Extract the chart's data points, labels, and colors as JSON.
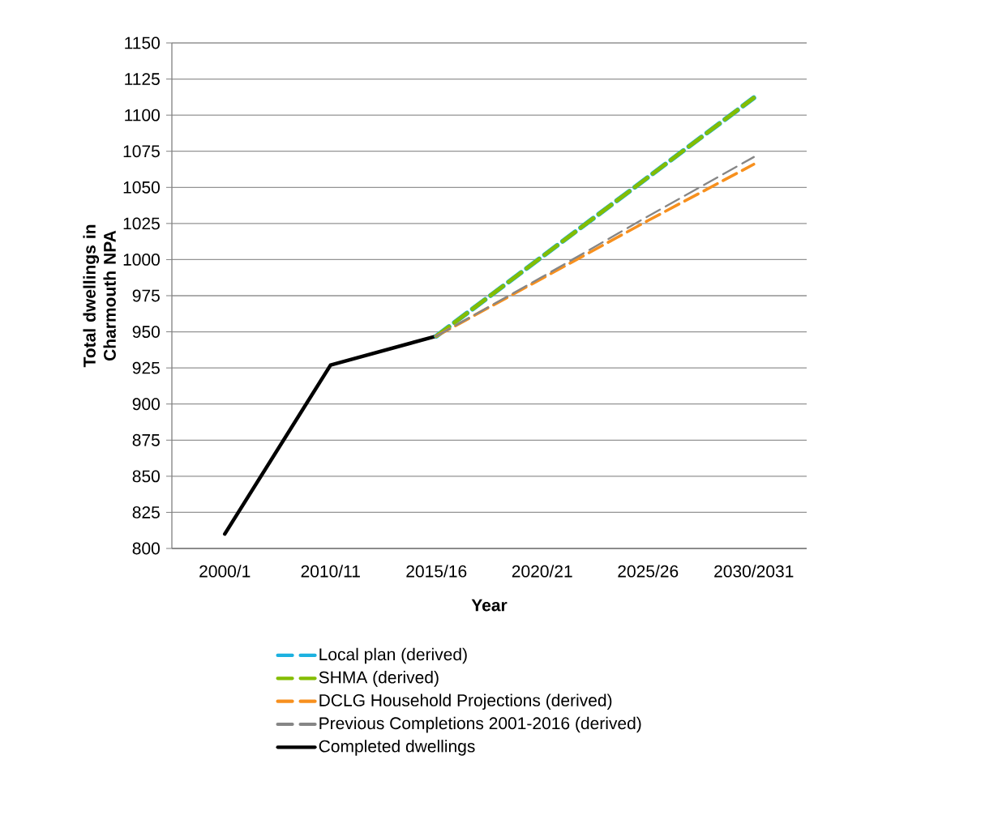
{
  "chart_data": {
    "type": "line",
    "xlabel": "Year",
    "ylabel": "Total dwellings in Charmouth NPA",
    "categories": [
      "2000/1",
      "2010/11",
      "2015/16",
      "2020/21",
      "2025/26",
      "2030/2031"
    ],
    "ylim": [
      800,
      1150
    ],
    "yticks": [
      800,
      825,
      850,
      875,
      900,
      925,
      950,
      975,
      1000,
      1025,
      1050,
      1075,
      1100,
      1125,
      1150
    ],
    "grid": "y",
    "legend": "bottom",
    "series": [
      {
        "name": "Local plan (derived)",
        "color": "#1cb1e0",
        "line_style": "dashed",
        "values": [
          null,
          null,
          947,
          1002,
          1057,
          1112
        ]
      },
      {
        "name": "SHMA (derived)",
        "color": "#84bd00",
        "line_style": "dashed",
        "values": [
          null,
          null,
          947,
          1002,
          1057,
          1112
        ]
      },
      {
        "name": "DCLG Household Projections (derived)",
        "color": "#f7901e",
        "line_style": "dashed",
        "values": [
          null,
          null,
          947,
          987,
          1027,
          1066
        ]
      },
      {
        "name": "Previous Completions 2001-2016 (derived)",
        "color": "#868686",
        "line_style": "dashed",
        "values": [
          null,
          null,
          947,
          988,
          1030,
          1071
        ]
      },
      {
        "name": "Completed dwellings",
        "color": "#000000",
        "line_style": "solid",
        "values": [
          810,
          927,
          947,
          null,
          null,
          null
        ]
      }
    ]
  }
}
